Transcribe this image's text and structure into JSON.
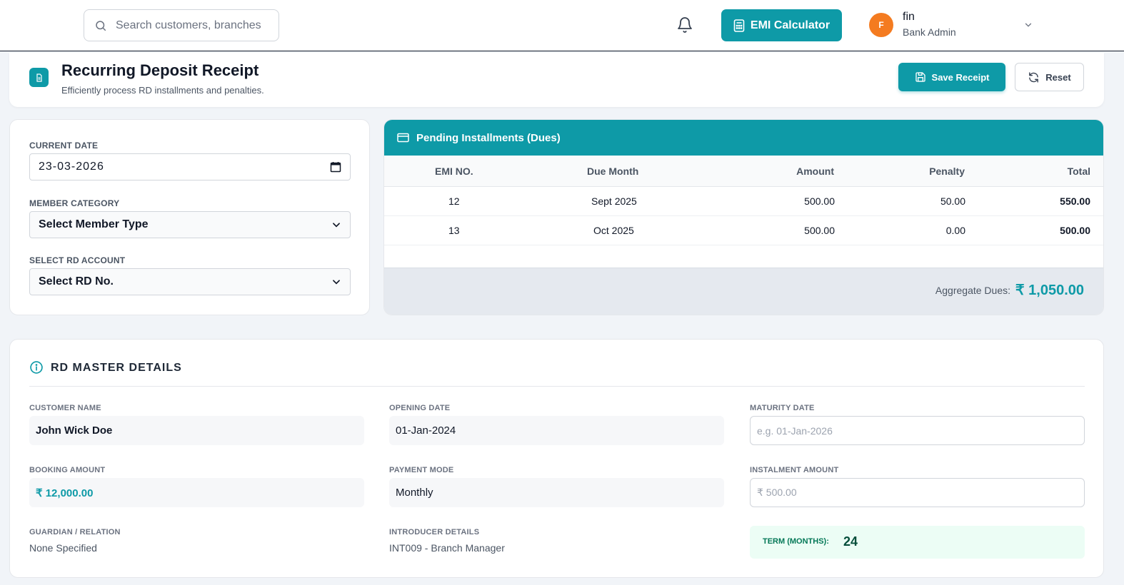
{
  "topbar": {
    "search_placeholder": "Search customers, branches",
    "emi_label": "EMI Calculator",
    "user": {
      "initial": "F",
      "name": "fin",
      "role": "Bank Admin"
    }
  },
  "header": {
    "title": "Recurring Deposit Receipt",
    "subtitle": "Efficiently process RD installments and penalties.",
    "save_label": "Save Receipt",
    "reset_label": "Reset"
  },
  "form": {
    "current_date_label": "CURRENT DATE",
    "current_date_value": "23-03-2026",
    "member_category_label": "MEMBER CATEGORY",
    "member_category_value": "Select Member Type",
    "rd_account_label": "SELECT RD ACCOUNT",
    "rd_account_value": "Select RD No."
  },
  "dues": {
    "title": "Pending Installments (Dues)",
    "columns": [
      "EMI NO.",
      "Due Month",
      "Amount",
      "Penalty",
      "Total"
    ],
    "rows": [
      {
        "emi_no": "12",
        "due_month": "Sept 2025",
        "amount": "500.00",
        "penalty": "50.00",
        "total": "550.00"
      },
      {
        "emi_no": "13",
        "due_month": "Oct 2025",
        "amount": "500.00",
        "penalty": "0.00",
        "total": "500.00"
      }
    ],
    "aggregate_label": "Aggregate Dues:",
    "aggregate_value": "₹ 1,050.00"
  },
  "master": {
    "title": "RD MASTER DETAILS",
    "customer_name_label": "CUSTOMER NAME",
    "customer_name": "John Wick Doe",
    "opening_date_label": "OPENING DATE",
    "opening_date": "01-Jan-2024",
    "maturity_date_label": "MATURITY DATE",
    "maturity_date_placeholder": "e.g. 01-Jan-2026",
    "booking_amount_label": "BOOKING AMOUNT",
    "booking_amount": "₹ 12,000.00",
    "payment_mode_label": "PAYMENT MODE",
    "payment_mode": "Monthly",
    "instalment_amount_label": "INSTALMENT AMOUNT",
    "instalment_amount_placeholder": "₹ 500.00",
    "guardian_label": "GUARDIAN / RELATION",
    "guardian_value": "None Specified",
    "introducer_label": "INTRODUCER DETAILS",
    "introducer_value": "INT009 - Branch Manager",
    "term_label": "TERM (MONTHS):",
    "term_value": "24"
  },
  "colors": {
    "accent": "#0e9aa7",
    "avatar": "#f47b20",
    "term_bg": "#ecfdf5"
  },
  "icons": [
    "search-icon",
    "bell-icon",
    "calculator-icon",
    "chevron-down-icon",
    "document-icon",
    "save-icon",
    "refresh-icon",
    "calendar-icon",
    "credit-card-icon",
    "info-icon"
  ]
}
